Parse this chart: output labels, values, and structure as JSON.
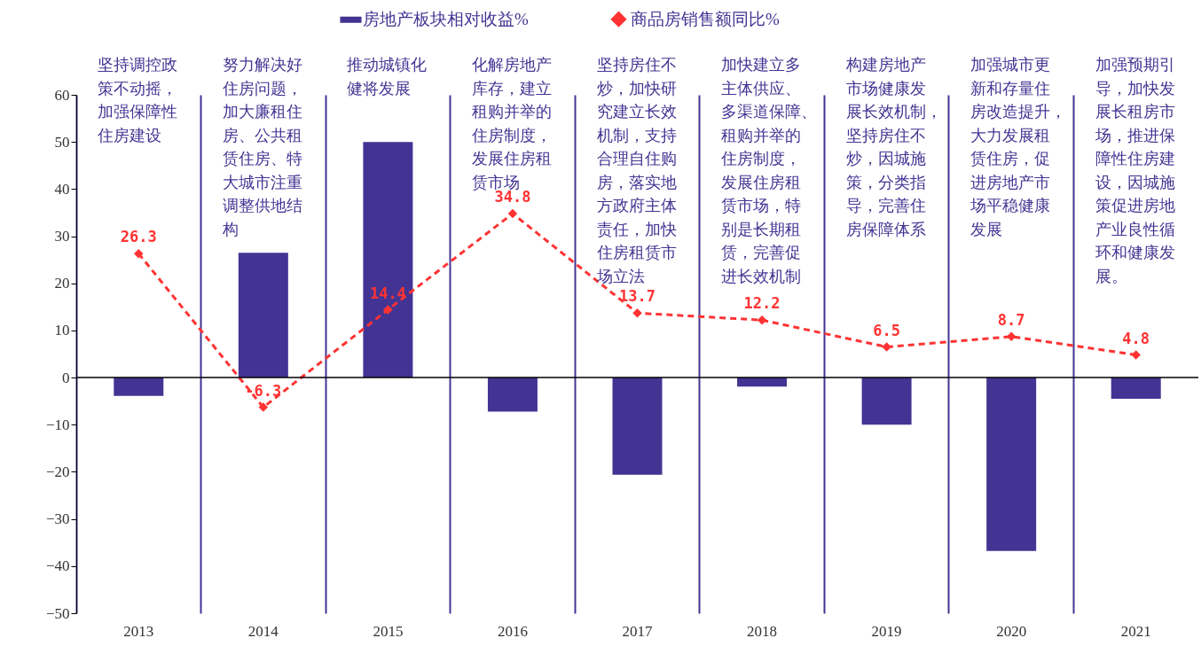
{
  "chart_data": {
    "type": "bar",
    "categories": [
      "2013",
      "2014",
      "2015",
      "2016",
      "2017",
      "2018",
      "2019",
      "2020",
      "2021"
    ],
    "series": [
      {
        "name": "房地产板块相对收益%",
        "color": "#433493",
        "values": [
          -3.9,
          26.5,
          50,
          -7.2,
          -20.6,
          -1.9,
          -10,
          -36.8,
          -4.5
        ]
      },
      {
        "name": "商品房销售额同比%",
        "type": "line",
        "color": "#ff3333",
        "marker": "diamond",
        "line_style": "dashed",
        "values": [
          26.3,
          -6.3,
          14.4,
          34.8,
          13.7,
          12.2,
          6.5,
          8.7,
          4.8
        ],
        "value_labels": [
          "26.3",
          "-6.3",
          "14.4",
          "34.8",
          "13.7",
          "12.2",
          "6.5",
          "8.7",
          "4.8"
        ]
      }
    ],
    "ylim": [
      -50,
      60
    ],
    "yticks": [
      -50,
      -40,
      -30,
      -20,
      -10,
      0,
      10,
      20,
      30,
      40,
      50,
      60
    ],
    "grid": "x",
    "legend": "top",
    "ref_lines": [
      {
        "axis": "y",
        "value": 0,
        "color": "#000000"
      }
    ],
    "annotations": [
      "坚持调控政策不动摇，加强保障性住房建设",
      "努力解决好住房问题，加大廉租住房、公共租赁住房、特大城市注重调整供地结构",
      "推动城镇化健将发展",
      "化解房地产库存，建立租购并举的住房制度，发展住房租赁市场",
      "坚持房住不炒，加快研究建立长效机制，支持合理自住购房，落实地方政府主体责任，加快住房租赁市场立法",
      "加快建立多主体供应、多渠道保障、租购并举的住房制度，发展住房租赁市场，特别是长期租赁，完善促进长效机制",
      "构建房地产市场健康发展长效机制，坚持房住不炒，因城施策，分类指导，完善住房保障体系",
      "加强城市更新和存量住房改造提升，大力发展租赁住房，促进房地产市场平稳健康发展",
      "加强预期引导，加快发展长租房市场，推进保障性住房建设，因城施策促进房地产业良性循环和健康发展。"
    ]
  }
}
